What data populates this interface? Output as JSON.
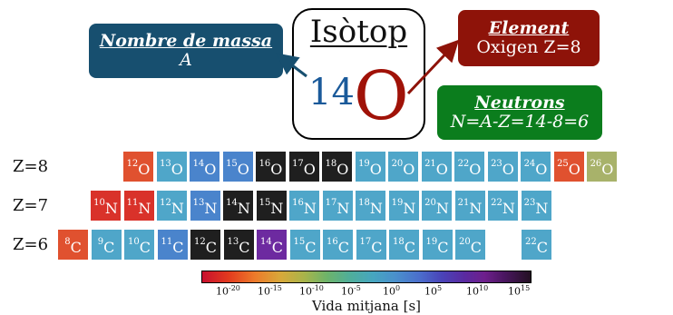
{
  "mass_box": {
    "title": "Nombre de massa",
    "text": "A",
    "color": "#174f6f"
  },
  "element_box": {
    "title": "Element",
    "text": "Oxigen Z=8",
    "color": "#8e1309"
  },
  "neutrons_box": {
    "title": "Neutrons",
    "text": "N=A-Z=14-8=6",
    "color": "#0b7d1d"
  },
  "isotope": {
    "title": "Isòtop",
    "mass": "14",
    "symbol": "O"
  },
  "rows": [
    {
      "label": "Z=8",
      "symbol": "O",
      "cells": [
        {
          "a": "12",
          "color": "#e0512f"
        },
        {
          "a": "13",
          "color": "#4fa6c9"
        },
        {
          "a": "14",
          "color": "#4a84cc"
        },
        {
          "a": "15",
          "color": "#4a84cc"
        },
        {
          "a": "16",
          "color": "#1f1f1f"
        },
        {
          "a": "17",
          "color": "#1f1f1f"
        },
        {
          "a": "18",
          "color": "#1f1f1f"
        },
        {
          "a": "19",
          "color": "#4fa6c9"
        },
        {
          "a": "20",
          "color": "#4fa6c9"
        },
        {
          "a": "21",
          "color": "#4fa6c9"
        },
        {
          "a": "22",
          "color": "#4fa6c9"
        },
        {
          "a": "23",
          "color": "#4fa6c9"
        },
        {
          "a": "24",
          "color": "#4fa6c9"
        },
        {
          "a": "25",
          "color": "#e0512f"
        },
        {
          "a": "26",
          "color": "#a8b26a"
        }
      ]
    },
    {
      "label": "Z=7",
      "symbol": "N",
      "cells": [
        {
          "a": "10",
          "color": "#d9322a"
        },
        {
          "a": "11",
          "color": "#d9322a"
        },
        {
          "a": "12",
          "color": "#4fa6c9"
        },
        {
          "a": "13",
          "color": "#4a84cc"
        },
        {
          "a": "14",
          "color": "#1f1f1f"
        },
        {
          "a": "15",
          "color": "#1f1f1f"
        },
        {
          "a": "16",
          "color": "#4fa6c9"
        },
        {
          "a": "17",
          "color": "#4fa6c9"
        },
        {
          "a": "18",
          "color": "#4fa6c9"
        },
        {
          "a": "19",
          "color": "#4fa6c9"
        },
        {
          "a": "20",
          "color": "#4fa6c9"
        },
        {
          "a": "21",
          "color": "#4fa6c9"
        },
        {
          "a": "22",
          "color": "#4fa6c9"
        },
        {
          "a": "23",
          "color": "#4fa6c9"
        }
      ]
    },
    {
      "label": "Z=6",
      "symbol": "C",
      "cells": [
        {
          "a": "8",
          "color": "#e0512f"
        },
        {
          "a": "9",
          "color": "#4fa6c9"
        },
        {
          "a": "10",
          "color": "#4fa6c9"
        },
        {
          "a": "11",
          "color": "#4a84cc"
        },
        {
          "a": "12",
          "color": "#1f1f1f"
        },
        {
          "a": "13",
          "color": "#1f1f1f"
        },
        {
          "a": "14",
          "color": "#6d2aa0"
        },
        {
          "a": "15",
          "color": "#4fa6c9"
        },
        {
          "a": "16",
          "color": "#4fa6c9"
        },
        {
          "a": "17",
          "color": "#4fa6c9"
        },
        {
          "a": "18",
          "color": "#4fa6c9"
        },
        {
          "a": "19",
          "color": "#4fa6c9"
        },
        {
          "a": "20",
          "color": "#4fa6c9"
        },
        {
          "a": null
        },
        {
          "a": "22",
          "color": "#4fa6c9"
        }
      ]
    }
  ],
  "colorbar": {
    "label": "Vida mitjana [s]",
    "ticks": [
      {
        "base": "10",
        "exp": "-20"
      },
      {
        "base": "10",
        "exp": "-15"
      },
      {
        "base": "10",
        "exp": "-10"
      },
      {
        "base": "10",
        "exp": "-5"
      },
      {
        "base": "10",
        "exp": "0"
      },
      {
        "base": "10",
        "exp": "5"
      },
      {
        "base": "10",
        "exp": "10"
      },
      {
        "base": "10",
        "exp": "15"
      }
    ]
  }
}
